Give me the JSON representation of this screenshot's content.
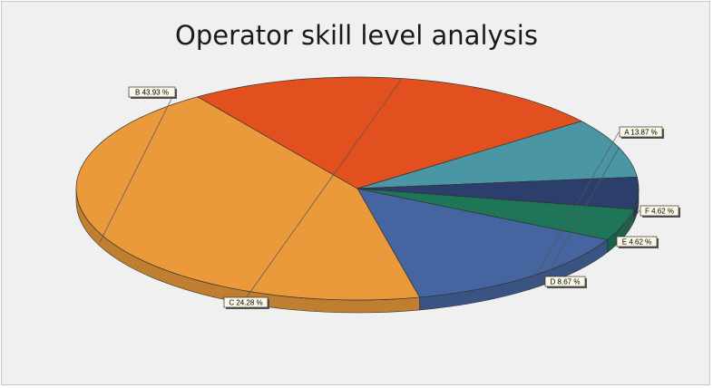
{
  "chart_data": {
    "type": "pie",
    "title": "Operator skill level analysis",
    "style": "3d",
    "slices": [
      {
        "name": "A",
        "value": 13.87,
        "label": "A 13.87 %",
        "color": "#4565a0"
      },
      {
        "name": "B",
        "value": 43.93,
        "label": "B 43.93 %",
        "color": "#ea9a3a"
      },
      {
        "name": "C",
        "value": 24.28,
        "label": "C 24.28 %",
        "color": "#e2501f"
      },
      {
        "name": "D",
        "value": 8.67,
        "label": "D 8.67 %",
        "color": "#4b96a4"
      },
      {
        "name": "E",
        "value": 4.62,
        "label": "E 4.62 %",
        "color": "#2b3e6c"
      },
      {
        "name": "F",
        "value": 4.62,
        "label": "F 4.62 %",
        "color": "#1e7558"
      }
    ]
  }
}
